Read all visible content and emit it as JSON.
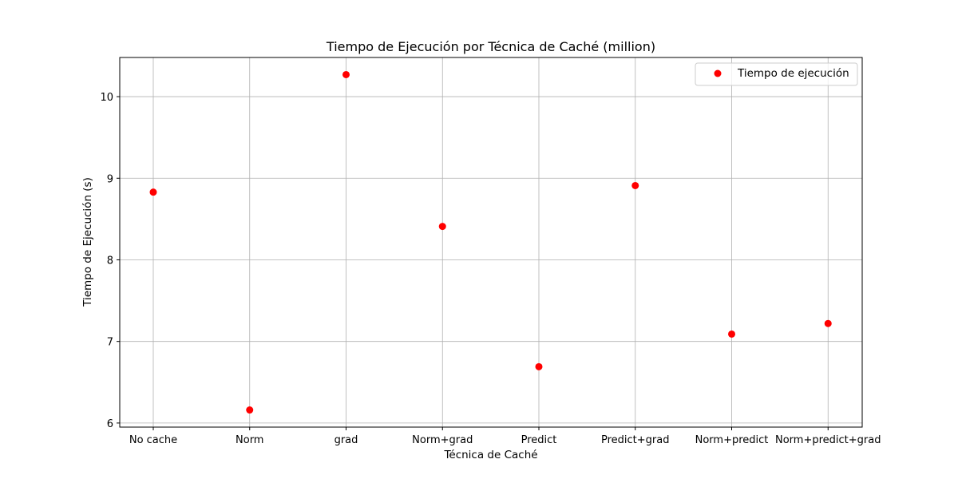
{
  "chart_data": {
    "type": "scatter",
    "title": "Tiempo de Ejecución por Técnica de Caché (million)",
    "xlabel": "Técnica de Caché",
    "ylabel": "Tiempo de Ejecución (s)",
    "categories": [
      "No cache",
      "Norm",
      "grad",
      "Norm+grad",
      "Predict",
      "Predict+grad",
      "Norm+predict",
      "Norm+predict+grad"
    ],
    "series": [
      {
        "name": "Tiempo de ejecución",
        "color": "#ff0000",
        "values": [
          8.83,
          6.16,
          10.27,
          8.41,
          6.69,
          8.91,
          7.09,
          7.22
        ]
      }
    ],
    "ylim": [
      5.95,
      10.48
    ],
    "yticks": [
      6,
      7,
      8,
      9,
      10
    ],
    "grid": true,
    "legend_position": "top-right"
  }
}
